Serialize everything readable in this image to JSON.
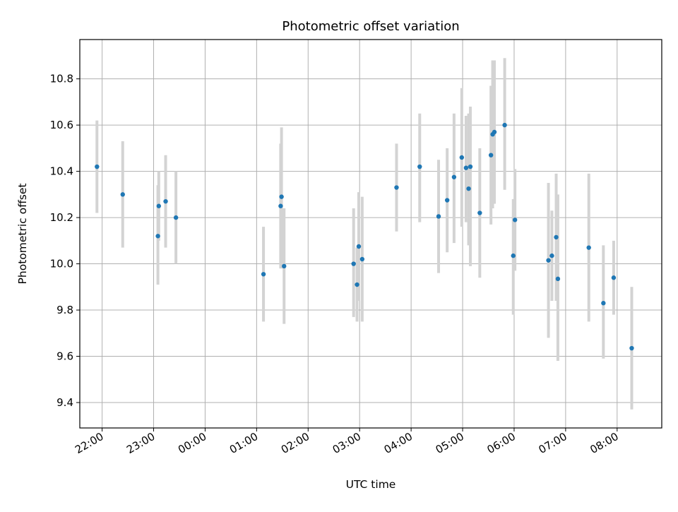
{
  "chart_data": {
    "type": "scatter",
    "title": "Photometric offset variation",
    "xlabel": "UTC time",
    "ylabel": "Photometric offset",
    "xlim": [
      "21:34",
      "08:52"
    ],
    "ylim": [
      9.29,
      10.97
    ],
    "grid": true,
    "x_tick_labels": [
      "22:00",
      "23:00",
      "00:00",
      "01:00",
      "02:00",
      "03:00",
      "04:00",
      "05:00",
      "06:00",
      "07:00",
      "08:00"
    ],
    "y_tick_labels": [
      "9.4",
      "9.6",
      "9.8",
      "10.0",
      "10.2",
      "10.4",
      "10.6",
      "10.8"
    ],
    "marker_color": "#1f77b4",
    "errorbar_color": "#d3d3d3",
    "points": [
      {
        "t": "21:54",
        "y": 10.42,
        "lo": 10.22,
        "hi": 10.62
      },
      {
        "t": "22:24",
        "y": 10.3,
        "lo": 10.07,
        "hi": 10.53
      },
      {
        "t": "23:05",
        "y": 10.12,
        "lo": 9.91,
        "hi": 10.34
      },
      {
        "t": "23:06",
        "y": 10.25,
        "lo": 10.1,
        "hi": 10.4
      },
      {
        "t": "23:14",
        "y": 10.27,
        "lo": 10.07,
        "hi": 10.47
      },
      {
        "t": "23:26",
        "y": 10.2,
        "lo": 10.0,
        "hi": 10.4
      },
      {
        "t": "01:08",
        "y": 9.955,
        "lo": 9.75,
        "hi": 10.16
      },
      {
        "t": "01:28",
        "y": 10.25,
        "lo": 9.98,
        "hi": 10.52
      },
      {
        "t": "01:29",
        "y": 10.29,
        "lo": 9.98,
        "hi": 10.59
      },
      {
        "t": "01:32",
        "y": 9.99,
        "lo": 9.74,
        "hi": 10.24
      },
      {
        "t": "02:53",
        "y": 10.0,
        "lo": 9.77,
        "hi": 10.24
      },
      {
        "t": "02:57",
        "y": 9.91,
        "lo": 9.75,
        "hi": 10.07
      },
      {
        "t": "02:59",
        "y": 10.075,
        "lo": 9.84,
        "hi": 10.31
      },
      {
        "t": "03:03",
        "y": 10.02,
        "lo": 9.75,
        "hi": 10.29
      },
      {
        "t": "03:43",
        "y": 10.33,
        "lo": 10.14,
        "hi": 10.52
      },
      {
        "t": "04:10",
        "y": 10.42,
        "lo": 10.18,
        "hi": 10.65
      },
      {
        "t": "04:32",
        "y": 10.205,
        "lo": 9.96,
        "hi": 10.45
      },
      {
        "t": "04:42",
        "y": 10.275,
        "lo": 10.05,
        "hi": 10.5
      },
      {
        "t": "04:50",
        "y": 10.375,
        "lo": 10.09,
        "hi": 10.65
      },
      {
        "t": "04:59",
        "y": 10.46,
        "lo": 10.16,
        "hi": 10.76
      },
      {
        "t": "05:04",
        "y": 10.415,
        "lo": 10.18,
        "hi": 10.64
      },
      {
        "t": "05:07",
        "y": 10.325,
        "lo": 10.08,
        "hi": 10.65
      },
      {
        "t": "05:09",
        "y": 10.42,
        "lo": 9.99,
        "hi": 10.68
      },
      {
        "t": "05:20",
        "y": 10.22,
        "lo": 9.94,
        "hi": 10.5
      },
      {
        "t": "05:33",
        "y": 10.47,
        "lo": 10.17,
        "hi": 10.77
      },
      {
        "t": "05:35",
        "y": 10.56,
        "lo": 10.24,
        "hi": 10.88
      },
      {
        "t": "05:37",
        "y": 10.57,
        "lo": 10.26,
        "hi": 10.88
      },
      {
        "t": "05:49",
        "y": 10.6,
        "lo": 10.32,
        "hi": 10.89
      },
      {
        "t": "05:59",
        "y": 10.035,
        "lo": 9.78,
        "hi": 10.28
      },
      {
        "t": "06:01",
        "y": 10.19,
        "lo": 9.97,
        "hi": 10.41
      },
      {
        "t": "06:40",
        "y": 10.015,
        "lo": 9.68,
        "hi": 10.35
      },
      {
        "t": "06:44",
        "y": 10.035,
        "lo": 9.84,
        "hi": 10.23
      },
      {
        "t": "06:49",
        "y": 10.115,
        "lo": 9.84,
        "hi": 10.39
      },
      {
        "t": "06:51",
        "y": 9.935,
        "lo": 9.58,
        "hi": 10.3
      },
      {
        "t": "07:27",
        "y": 10.07,
        "lo": 9.75,
        "hi": 10.39
      },
      {
        "t": "07:44",
        "y": 9.83,
        "lo": 9.59,
        "hi": 10.08
      },
      {
        "t": "07:56",
        "y": 9.94,
        "lo": 9.78,
        "hi": 10.1
      },
      {
        "t": "08:17",
        "y": 9.635,
        "lo": 9.37,
        "hi": 9.9
      }
    ]
  }
}
